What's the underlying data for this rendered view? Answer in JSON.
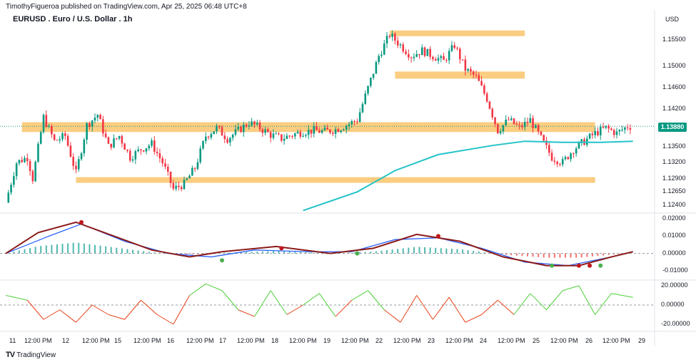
{
  "header": {
    "published": "TimothyFigueroa published on TradingView.com, Apr 25, 2025 06:48 UTC+8",
    "symbol_title": "EURUSD . Euro / U.S. Dollar . 1h",
    "currency": "USD",
    "brand": "TradingView",
    "brand_logo": "TV"
  },
  "chart_data": {
    "type": "candlestick",
    "symbol": "EURUSD",
    "timeframe": "1h",
    "last_price": "1.13880",
    "price_axis": [
      "1.15500",
      "1.15000",
      "1.14600",
      "1.14200",
      "1.13500",
      "1.13200",
      "1.12900",
      "1.12650",
      "1.12400"
    ],
    "x_ticks": [
      "11",
      "12:00 PM",
      "12",
      "12:00 PM",
      "15",
      "12:00 PM",
      "16",
      "12:00 PM",
      "17",
      "12:00 PM",
      "18",
      "12:00 PM",
      "19",
      "12:00 PM",
      "22",
      "12:00 PM",
      "23",
      "12:00 PM",
      "24",
      "12:00 PM",
      "25",
      "12:00 PM",
      "26",
      "12:00 PM",
      "29"
    ],
    "close_path": [
      [
        0,
        1.1245
      ],
      [
        2,
        1.132
      ],
      [
        4,
        1.133
      ],
      [
        5,
        1.129
      ],
      [
        7,
        1.1405
      ],
      [
        9,
        1.136
      ],
      [
        11,
        1.137
      ],
      [
        13,
        1.13
      ],
      [
        15,
        1.139
      ],
      [
        17,
        1.141
      ],
      [
        19,
        1.135
      ],
      [
        21,
        1.137
      ],
      [
        23,
        1.133
      ],
      [
        25,
        1.1345
      ],
      [
        27,
        1.1355
      ],
      [
        29,
        1.132
      ],
      [
        31,
        1.127
      ],
      [
        33,
        1.128
      ],
      [
        35,
        1.131
      ],
      [
        37,
        1.137
      ],
      [
        39,
        1.1385
      ],
      [
        41,
        1.1365
      ],
      [
        43,
        1.138
      ],
      [
        45,
        1.1395
      ],
      [
        47,
        1.1385
      ],
      [
        49,
        1.1372
      ],
      [
        51,
        1.1365
      ],
      [
        53,
        1.1372
      ],
      [
        55,
        1.1378
      ],
      [
        57,
        1.138
      ],
      [
        59,
        1.1378
      ],
      [
        61,
        1.1382
      ],
      [
        63,
        1.139
      ],
      [
        65,
        1.14
      ],
      [
        67,
        1.146
      ],
      [
        69,
        1.152
      ],
      [
        71,
        1.156
      ],
      [
        73,
        1.154
      ],
      [
        75,
        1.152
      ],
      [
        77,
        1.153
      ],
      [
        79,
        1.152
      ],
      [
        81,
        1.151
      ],
      [
        83,
        1.154
      ],
      [
        85,
        1.1495
      ],
      [
        87,
        1.148
      ],
      [
        89,
        1.144
      ],
      [
        91,
        1.138
      ],
      [
        93,
        1.14
      ],
      [
        95,
        1.1385
      ],
      [
        97,
        1.14
      ],
      [
        99,
        1.1365
      ],
      [
        101,
        1.133
      ],
      [
        103,
        1.132
      ],
      [
        105,
        1.1345
      ],
      [
        107,
        1.136
      ],
      [
        109,
        1.1375
      ],
      [
        111,
        1.1385
      ],
      [
        113,
        1.1375
      ],
      [
        115,
        1.1388
      ]
    ],
    "moving_average": {
      "color": "#22c3c9",
      "points": [
        [
          55,
          1.123
        ],
        [
          65,
          1.1265
        ],
        [
          72,
          1.1305
        ],
        [
          80,
          1.1335
        ],
        [
          90,
          1.1352
        ],
        [
          96,
          1.136
        ],
        [
          103,
          1.1358
        ],
        [
          110,
          1.1358
        ],
        [
          116,
          1.136
        ]
      ]
    },
    "zones": [
      {
        "price_top": 1.1565,
        "price_bottom": 1.156,
        "x_start": 71,
        "x_end": 96,
        "color": "#f9c46b",
        "label": "resistance-top"
      },
      {
        "price_top": 1.1488,
        "price_bottom": 1.148,
        "x_start": 72,
        "x_end": 96,
        "color": "#f9c46b",
        "label": "resistance-mid"
      },
      {
        "price_top": 1.1393,
        "price_bottom": 1.138,
        "x_start": 3,
        "x_end": 109,
        "color": "#f9c46b",
        "label": "pivot-zone"
      },
      {
        "price_top": 1.129,
        "price_bottom": 1.1286,
        "x_start": 13,
        "x_end": 109,
        "color": "#f9c46b",
        "label": "support"
      }
    ],
    "macd": {
      "axis": [
        "0.02000",
        "0.01000",
        "0.00000",
        "-0.01000"
      ],
      "fast": [
        [
          0,
          0.0,
          0
        ],
        [
          6,
          0.012,
          0
        ],
        [
          13,
          0.018,
          0
        ],
        [
          20,
          0.01,
          0
        ],
        [
          27,
          0.002,
          0
        ],
        [
          34,
          -0.002,
          0
        ],
        [
          40,
          0.001,
          0
        ],
        [
          50,
          0.004,
          0
        ],
        [
          60,
          0.0,
          0
        ],
        [
          68,
          0.003,
          0
        ],
        [
          76,
          0.011,
          0
        ],
        [
          84,
          0.007,
          0
        ],
        [
          92,
          -0.002,
          0
        ],
        [
          100,
          -0.007,
          0
        ],
        [
          106,
          -0.007,
          0
        ],
        [
          112,
          -0.002,
          0
        ],
        [
          116,
          0.001,
          0
        ]
      ],
      "slow": [
        [
          0,
          0.0,
          0
        ],
        [
          8,
          0.01,
          0
        ],
        [
          14,
          0.017,
          0
        ],
        [
          22,
          0.007,
          0
        ],
        [
          30,
          0.0,
          0
        ],
        [
          38,
          -0.002,
          0
        ],
        [
          46,
          0.002,
          0
        ],
        [
          56,
          0.001,
          0
        ],
        [
          64,
          0.001,
          0
        ],
        [
          72,
          0.008,
          0
        ],
        [
          80,
          0.009,
          0
        ],
        [
          88,
          0.003,
          0
        ],
        [
          96,
          -0.005,
          0
        ],
        [
          104,
          -0.007,
          0
        ],
        [
          112,
          -0.002,
          0
        ],
        [
          116,
          0.001,
          0
        ]
      ],
      "cross_dots": [
        [
          14,
          0.018,
          "#c0161c"
        ],
        [
          40,
          -0.004,
          "#4caf50"
        ],
        [
          51,
          0.003,
          "#c0161c"
        ],
        [
          65,
          0.0,
          "#4caf50"
        ],
        [
          80,
          0.01,
          "#c0161c"
        ],
        [
          101,
          -0.007,
          "#4caf50"
        ],
        [
          106,
          -0.007,
          "#c0161c"
        ],
        [
          108,
          -0.007,
          "#c0161c"
        ],
        [
          110,
          -0.007,
          "#4caf50"
        ]
      ]
    },
    "oscillator": {
      "axis": [
        "20.00000",
        "0.00000",
        "-20.00000"
      ],
      "series": [
        [
          0,
          10
        ],
        [
          4,
          5
        ],
        [
          7,
          -15
        ],
        [
          10,
          -5
        ],
        [
          13,
          -18
        ],
        [
          16,
          0
        ],
        [
          19,
          -10
        ],
        [
          22,
          -15
        ],
        [
          25,
          5
        ],
        [
          28,
          -10
        ],
        [
          31,
          -20
        ],
        [
          34,
          10
        ],
        [
          37,
          22
        ],
        [
          40,
          15
        ],
        [
          43,
          -5
        ],
        [
          46,
          -12
        ],
        [
          49,
          15
        ],
        [
          52,
          -10
        ],
        [
          55,
          0
        ],
        [
          58,
          12
        ],
        [
          61,
          -12
        ],
        [
          64,
          5
        ],
        [
          67,
          15
        ],
        [
          70,
          -5
        ],
        [
          73,
          -18
        ],
        [
          76,
          10
        ],
        [
          79,
          -15
        ],
        [
          82,
          8
        ],
        [
          85,
          -18
        ],
        [
          88,
          -10
        ],
        [
          91,
          5
        ],
        [
          94,
          -10
        ],
        [
          97,
          12
        ],
        [
          100,
          -5
        ],
        [
          103,
          15
        ],
        [
          106,
          20
        ],
        [
          109,
          -10
        ],
        [
          112,
          12
        ],
        [
          116,
          8
        ]
      ]
    }
  }
}
